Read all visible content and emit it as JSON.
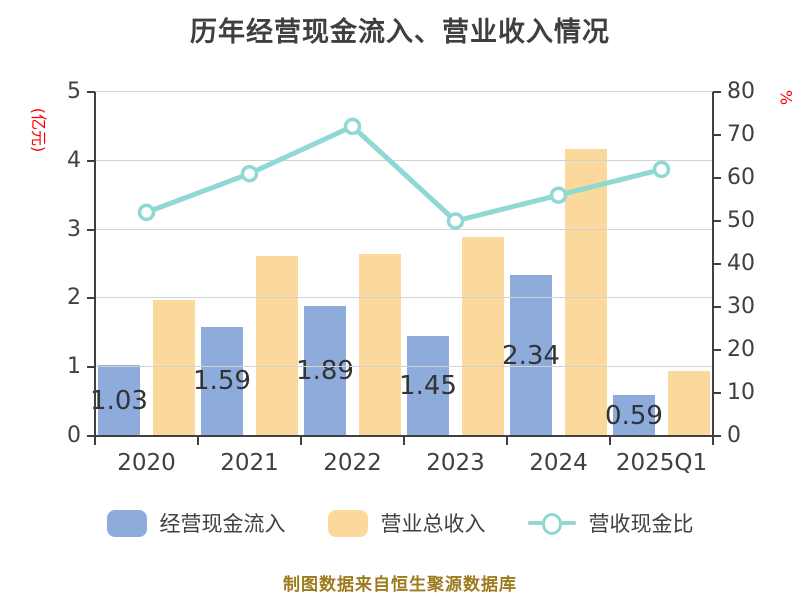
{
  "title": "历年经营现金流入、营业收入情况",
  "footer": "制图数据来自恒生聚源数据库",
  "colors": {
    "cash_bar": "#8dacdc",
    "revenue_bar": "#fbd99c",
    "ratio_line": "#8fd8d4",
    "marker_fill": "#ffffff",
    "axis_text": "#404040",
    "unit_label_red": "#ff0000",
    "grid": "#d2d2d2",
    "bar_label": "#333333",
    "footer_text": "#9e7a1e"
  },
  "left_axis": {
    "label": "(亿元)",
    "min": 0,
    "max": 5,
    "ticks": [
      0,
      1,
      2,
      3,
      4,
      5
    ]
  },
  "right_axis": {
    "label": "%",
    "min": 0,
    "max": 80,
    "ticks": [
      0,
      10,
      20,
      30,
      40,
      50,
      60,
      70,
      80
    ]
  },
  "legend": [
    {
      "label": "经营现金流入",
      "type": "bar"
    },
    {
      "label": "营业总收入",
      "type": "bar"
    },
    {
      "label": "营收现金比",
      "type": "line"
    }
  ],
  "chart_data": {
    "type": "combo-bar-line",
    "title": "历年经营现金流入、营业收入情况",
    "categories": [
      "2020",
      "2021",
      "2022",
      "2023",
      "2024",
      "2025Q1"
    ],
    "series": [
      {
        "name": "经营现金流入",
        "type": "bar",
        "axis": "left",
        "values": [
          1.03,
          1.59,
          1.89,
          1.45,
          2.34,
          0.59
        ],
        "labels": [
          "1.03",
          "1.59",
          "1.89",
          "1.45",
          "2.34",
          "0.59"
        ]
      },
      {
        "name": "营业总收入",
        "type": "bar",
        "axis": "left",
        "values": [
          1.97,
          2.62,
          2.64,
          2.89,
          4.17,
          0.95
        ]
      },
      {
        "name": "营收现金比",
        "type": "line",
        "axis": "right",
        "values": [
          52,
          61,
          72,
          50,
          56,
          62
        ]
      }
    ],
    "left_ylabel": "(亿元)",
    "right_ylabel": "%",
    "left_ylim": [
      0,
      5
    ],
    "right_ylim": [
      0,
      80
    ],
    "grid": true,
    "legend_position": "bottom"
  }
}
